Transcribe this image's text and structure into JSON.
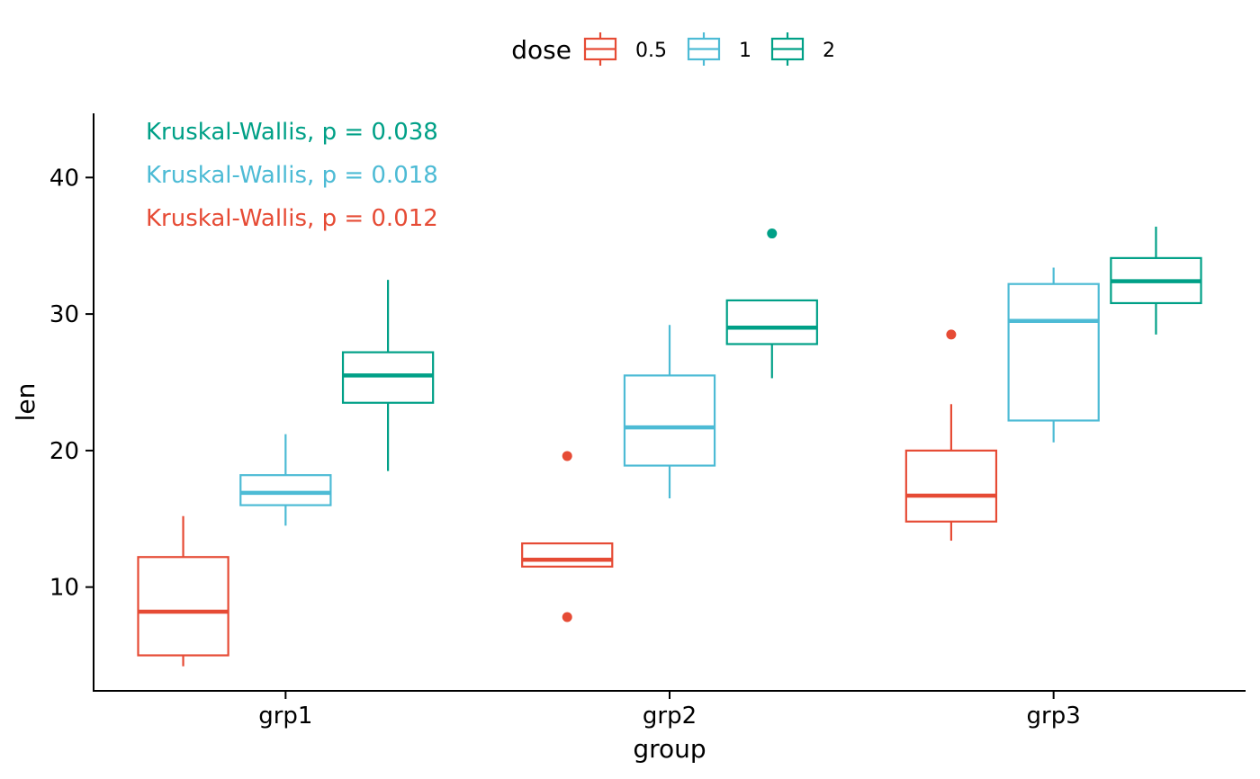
{
  "chart_data": {
    "type": "boxplot",
    "xlabel": "group",
    "ylabel": "len",
    "categories": [
      "grp1",
      "grp2",
      "grp3"
    ],
    "y_ticks": [
      10,
      20,
      30,
      40
    ],
    "ylim": [
      2.4,
      44.7
    ],
    "grid": false,
    "legend": {
      "title": "dose",
      "position": "top",
      "entries": [
        {
          "label": "0.5",
          "color": "#E64B35"
        },
        {
          "label": "1",
          "color": "#4DBBD5"
        },
        {
          "label": "2",
          "color": "#00A087"
        }
      ]
    },
    "annotations": [
      {
        "text": "Kruskal-Wallis, p = 0.038",
        "color": "#00A087"
      },
      {
        "text": "Kruskal-Wallis, p = 0.018",
        "color": "#4DBBD5"
      },
      {
        "text": "Kruskal-Wallis, p = 0.012",
        "color": "#E64B35"
      }
    ],
    "series": [
      {
        "name": "0.5",
        "color": "#E64B35",
        "boxes": [
          {
            "category": "grp1",
            "whisker_low": 4.2,
            "q1": 5.0,
            "median": 8.2,
            "q3": 12.2,
            "whisker_high": 15.2,
            "outliers": []
          },
          {
            "category": "grp2",
            "whisker_low": 11.5,
            "q1": 11.5,
            "median": 12.0,
            "q3": 13.2,
            "whisker_high": 13.2,
            "outliers": [
              19.6,
              7.8
            ]
          },
          {
            "category": "grp3",
            "whisker_low": 13.4,
            "q1": 14.8,
            "median": 16.7,
            "q3": 20.0,
            "whisker_high": 23.4,
            "outliers": [
              28.5
            ]
          }
        ]
      },
      {
        "name": "1",
        "color": "#4DBBD5",
        "boxes": [
          {
            "category": "grp1",
            "whisker_low": 14.5,
            "q1": 16.0,
            "median": 16.9,
            "q3": 18.2,
            "whisker_high": 21.2,
            "outliers": []
          },
          {
            "category": "grp2",
            "whisker_low": 16.5,
            "q1": 18.9,
            "median": 21.7,
            "q3": 25.5,
            "whisker_high": 29.2,
            "outliers": []
          },
          {
            "category": "grp3",
            "whisker_low": 20.6,
            "q1": 22.2,
            "median": 29.5,
            "q3": 32.2,
            "whisker_high": 33.4,
            "outliers": []
          }
        ]
      },
      {
        "name": "2",
        "color": "#00A087",
        "boxes": [
          {
            "category": "grp1",
            "whisker_low": 18.5,
            "q1": 23.5,
            "median": 25.5,
            "q3": 27.2,
            "whisker_high": 32.5,
            "outliers": []
          },
          {
            "category": "grp2",
            "whisker_low": 25.3,
            "q1": 27.8,
            "median": 29.0,
            "q3": 31.0,
            "whisker_high": 31.0,
            "outliers": [
              35.9
            ]
          },
          {
            "category": "grp3",
            "whisker_low": 28.5,
            "q1": 30.8,
            "median": 32.4,
            "q3": 34.1,
            "whisker_high": 36.4,
            "outliers": []
          }
        ]
      }
    ]
  }
}
